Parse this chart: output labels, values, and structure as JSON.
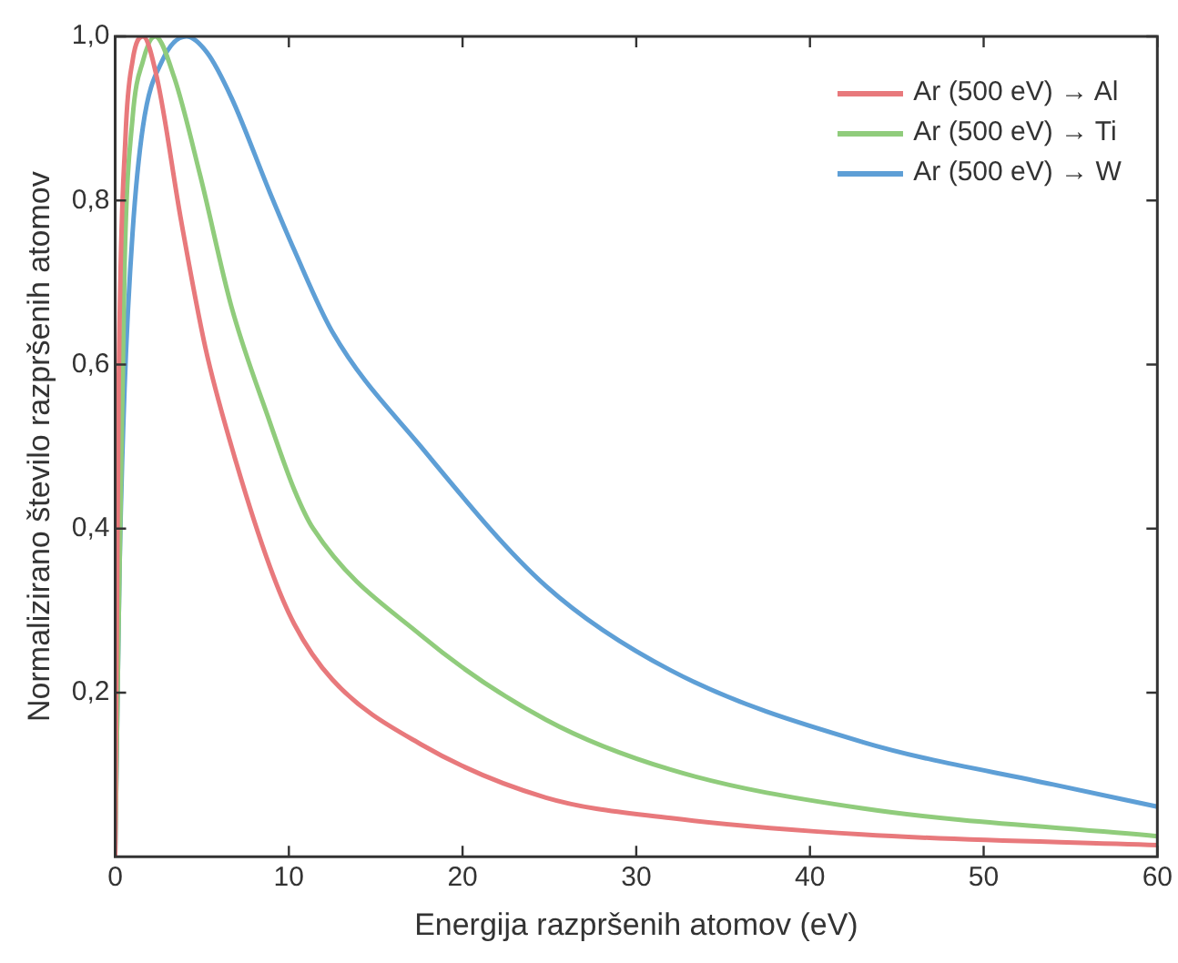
{
  "chart_data": {
    "type": "line",
    "xlabel": "Energija razpršenih atomov (eV)",
    "ylabel": "Normalizirano število razpršenih atomov",
    "xlim": [
      0,
      60
    ],
    "xticks": [
      0,
      10,
      20,
      30,
      40,
      50,
      60
    ],
    "ylim": [
      0,
      1
    ],
    "yticks": [
      {
        "value": 0.2,
        "label": "0,2"
      },
      {
        "value": 0.4,
        "label": "0,4"
      },
      {
        "value": 0.6,
        "label": "0,6"
      },
      {
        "value": 0.8,
        "label": "0,8"
      },
      {
        "value": 1,
        "label": "1,0"
      }
    ],
    "grid": false,
    "legend": "top right",
    "marker": "none",
    "line_style": "solid",
    "series": [
      {
        "name": "Ar (500 eV) → Al",
        "color": "#e8797c",
        "x": [
          0,
          0.2,
          0.6,
          1.0,
          1.6,
          2.4,
          3.8,
          5.2,
          6.7,
          8.9,
          10.3,
          12.5,
          17.6,
          24.8,
          32,
          43,
          60
        ],
        "values": [
          0,
          0.57,
          0.88,
          0.97,
          1.0,
          0.95,
          0.775,
          0.62,
          0.5,
          0.354,
          0.284,
          0.216,
          0.137,
          0.072,
          0.047,
          0.027,
          0.014
        ]
      },
      {
        "name": "Ar (500 eV) → Ti",
        "color": "#90cc7c",
        "x": [
          0,
          0.54,
          1.0,
          1.6,
          2.3,
          3.4,
          4.9,
          6.7,
          8.9,
          10.3,
          11.4,
          17.6,
          24.8,
          32,
          43,
          60
        ],
        "values": [
          0,
          0.72,
          0.9,
          0.97,
          1.0,
          0.95,
          0.83,
          0.67,
          0.53,
          0.448,
          0.4,
          0.27,
          0.167,
          0.106,
          0.059,
          0.025
        ]
      },
      {
        "name": "Ar (500 eV) → W",
        "color": "#5e9fd6",
        "x": [
          0,
          0.25,
          0.54,
          1.0,
          1.6,
          2.7,
          4.1,
          5.3,
          6.7,
          8.9,
          10.3,
          12.5,
          17.6,
          24.8,
          32,
          43,
          54,
          60
        ],
        "values": [
          0,
          0.35,
          0.57,
          0.76,
          0.89,
          0.97,
          1.0,
          0.98,
          0.925,
          0.81,
          0.74,
          0.64,
          0.5,
          0.33,
          0.227,
          0.14,
          0.088,
          0.061
        ]
      }
    ]
  }
}
